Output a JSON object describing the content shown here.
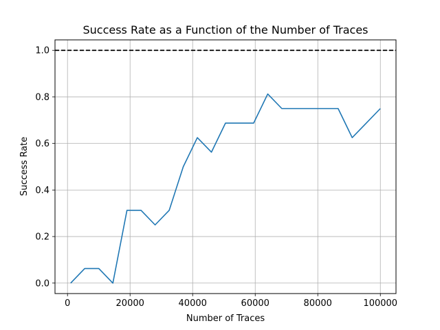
{
  "chart_data": {
    "type": "line",
    "title": "Success Rate as a Function of the Number of Traces",
    "xlabel": "Number of Traces",
    "ylabel": "Success Rate",
    "xlim": [
      -4000,
      105000
    ],
    "ylim": [
      -0.045,
      1.045
    ],
    "x_ticks": [
      0,
      20000,
      40000,
      60000,
      80000,
      100000
    ],
    "x_tick_labels": [
      "0",
      "20000",
      "40000",
      "60000",
      "80000",
      "100000"
    ],
    "y_ticks": [
      0.0,
      0.2,
      0.4,
      0.6,
      0.8,
      1.0
    ],
    "y_tick_labels": [
      "0.0",
      "0.2",
      "0.4",
      "0.6",
      "0.8",
      "1.0"
    ],
    "grid": true,
    "series": [
      {
        "color": "#1f77b4",
        "x": [
          1000,
          5500,
          10000,
          14500,
          19000,
          23500,
          28000,
          32500,
          37000,
          41500,
          46000,
          50500,
          55000,
          59500,
          64000,
          68500,
          73000,
          77500,
          82000,
          86500,
          91000,
          95500,
          100000
        ],
        "y": [
          0.0,
          0.0625,
          0.0625,
          0.0,
          0.3125,
          0.3125,
          0.25,
          0.3125,
          0.5,
          0.625,
          0.5625,
          0.6875,
          0.6875,
          0.6875,
          0.8125,
          0.75,
          0.75,
          0.75,
          0.75,
          0.75,
          0.625,
          0.6875,
          0.75
        ]
      }
    ],
    "reference_line": {
      "y": 1.0,
      "style": "dashed",
      "color": "#000000"
    }
  }
}
